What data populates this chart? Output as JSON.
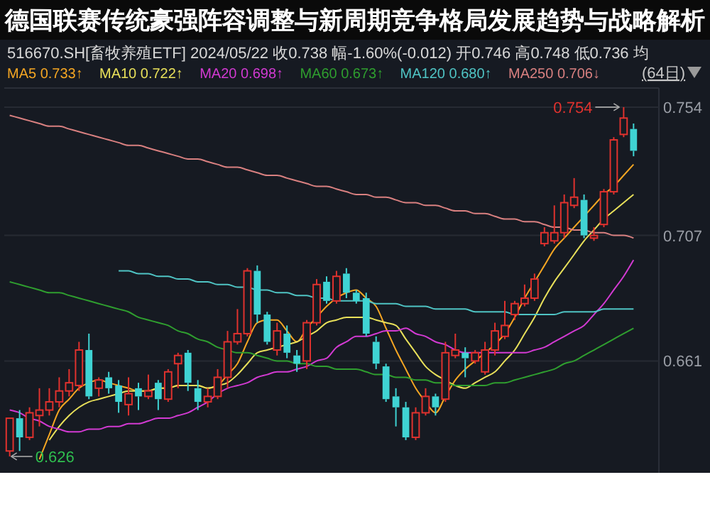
{
  "chart_data": {
    "type": "candlestick",
    "title": "德国联赛传统豪强阵容调整与新周期竞争格局发展趋势与战略解析",
    "subtitle": "516670.SH[畜牧养殖ETF]  2024/05/22  收0.738  幅-1.60%(-0.012)  开0.746  高0.748  低0.736  均",
    "categories": [
      null,
      null,
      null,
      null,
      null,
      null,
      null,
      null,
      null,
      null,
      null,
      null,
      null,
      null,
      null,
      null,
      null,
      null,
      null,
      null,
      null,
      null,
      null,
      null,
      null,
      null,
      null,
      null,
      null,
      null,
      null,
      null,
      null,
      null,
      null,
      null,
      null,
      null,
      null,
      null,
      null,
      null,
      null,
      null,
      null,
      null,
      null,
      null,
      null,
      null,
      null,
      null,
      null,
      null,
      null,
      null,
      null,
      null,
      null,
      null,
      null,
      null,
      null,
      null
    ],
    "ohlc": [
      [
        0.628,
        0.64,
        0.626,
        0.64
      ],
      [
        0.64,
        0.643,
        0.628,
        0.633
      ],
      [
        0.633,
        0.644,
        0.632,
        0.642
      ],
      [
        0.641,
        0.651,
        0.637,
        0.643
      ],
      [
        0.643,
        0.651,
        0.641,
        0.646
      ],
      [
        0.646,
        0.655,
        0.644,
        0.65
      ],
      [
        0.65,
        0.658,
        0.648,
        0.653
      ],
      [
        0.652,
        0.668,
        0.65,
        0.665
      ],
      [
        0.665,
        0.671,
        0.647,
        0.648
      ],
      [
        0.651,
        0.655,
        0.648,
        0.654
      ],
      [
        0.655,
        0.657,
        0.649,
        0.651
      ],
      [
        0.652,
        0.654,
        0.642,
        0.646
      ],
      [
        0.645,
        0.655,
        0.641,
        0.649
      ],
      [
        0.651,
        0.653,
        0.643,
        0.648
      ],
      [
        0.648,
        0.656,
        0.647,
        0.65
      ],
      [
        0.653,
        0.654,
        0.643,
        0.647
      ],
      [
        0.647,
        0.658,
        0.646,
        0.657
      ],
      [
        0.66,
        0.664,
        0.651,
        0.663
      ],
      [
        0.664,
        0.665,
        0.65,
        0.653
      ],
      [
        0.651,
        0.654,
        0.643,
        0.646
      ],
      [
        0.646,
        0.651,
        0.644,
        0.648
      ],
      [
        0.648,
        0.658,
        0.647,
        0.655
      ],
      [
        0.655,
        0.672,
        0.651,
        0.668
      ],
      [
        0.668,
        0.68,
        0.667,
        0.671
      ],
      [
        0.671,
        0.695,
        0.67,
        0.694
      ],
      [
        0.694,
        0.696,
        0.675,
        0.678
      ],
      [
        0.678,
        0.679,
        0.667,
        0.668
      ],
      [
        0.665,
        0.675,
        0.663,
        0.672
      ],
      [
        0.671,
        0.674,
        0.662,
        0.664
      ],
      [
        0.663,
        0.665,
        0.657,
        0.66
      ],
      [
        0.661,
        0.676,
        0.658,
        0.675
      ],
      [
        0.675,
        0.691,
        0.674,
        0.689
      ],
      [
        0.69,
        0.692,
        0.682,
        0.683
      ],
      [
        0.683,
        0.694,
        0.682,
        0.692
      ],
      [
        0.693,
        0.695,
        0.684,
        0.686
      ],
      [
        0.686,
        0.687,
        0.682,
        0.683
      ],
      [
        0.684,
        0.686,
        0.67,
        0.671
      ],
      [
        0.668,
        0.67,
        0.658,
        0.66
      ],
      [
        0.659,
        0.66,
        0.646,
        0.647
      ],
      [
        0.648,
        0.651,
        0.637,
        0.644
      ],
      [
        0.644,
        0.646,
        0.632,
        0.633
      ],
      [
        0.633,
        0.644,
        0.632,
        0.642
      ],
      [
        0.642,
        0.651,
        0.641,
        0.648
      ],
      [
        0.648,
        0.649,
        0.641,
        0.644
      ],
      [
        0.647,
        0.668,
        0.646,
        0.664
      ],
      [
        0.663,
        0.671,
        0.662,
        0.665
      ],
      [
        0.664,
        0.666,
        0.655,
        0.662
      ],
      [
        0.661,
        0.665,
        0.66,
        0.664
      ],
      [
        0.657,
        0.668,
        0.656,
        0.665
      ],
      [
        0.665,
        0.675,
        0.663,
        0.672
      ],
      [
        0.67,
        0.683,
        0.669,
        0.674
      ],
      [
        0.678,
        0.683,
        0.676,
        0.682
      ],
      [
        0.682,
        0.689,
        0.681,
        0.684
      ],
      [
        0.684,
        0.693,
        0.683,
        0.691
      ],
      [
        0.704,
        0.71,
        0.703,
        0.708
      ],
      [
        0.705,
        0.718,
        0.704,
        0.708
      ],
      [
        0.708,
        0.722,
        0.706,
        0.719
      ],
      [
        0.718,
        0.728,
        0.717,
        0.721
      ],
      [
        0.72,
        0.722,
        0.706,
        0.707
      ],
      [
        0.706,
        0.71,
        0.705,
        0.707
      ],
      [
        0.711,
        0.724,
        0.71,
        0.723
      ],
      [
        0.723,
        0.743,
        0.722,
        0.742
      ],
      [
        0.744,
        0.754,
        0.743,
        0.75
      ],
      [
        0.746,
        0.748,
        0.736,
        0.738
      ]
    ],
    "series": [
      {
        "type": "line",
        "name": "MA5 0.733↑",
        "color": "#f5a623",
        "values": [
          null,
          null,
          null,
          0.625,
          0.634,
          0.643,
          0.647,
          0.651,
          0.653,
          0.654,
          0.653,
          0.652,
          0.651,
          0.65,
          0.65,
          0.651,
          0.651,
          0.652,
          0.652,
          0.652,
          0.651,
          0.652,
          0.656,
          0.66,
          0.668,
          0.675,
          0.676,
          0.676,
          0.672,
          0.668,
          0.673,
          0.677,
          0.681,
          0.684,
          0.686,
          0.687,
          0.684,
          0.681,
          0.673,
          0.665,
          0.658,
          0.651,
          0.646,
          0.642,
          0.648,
          0.654,
          0.658,
          0.661,
          0.664,
          0.667,
          0.671,
          0.677,
          0.684,
          0.69,
          0.696,
          0.702,
          0.706,
          0.71,
          0.714,
          0.718,
          0.722,
          0.725,
          0.729,
          0.733
        ]
      },
      {
        "type": "line",
        "name": "MA10 0.722↑",
        "color": "#e8e05a",
        "values": [
          null,
          null,
          null,
          null,
          0.632,
          0.637,
          0.641,
          0.644,
          0.646,
          0.647,
          0.648,
          0.649,
          0.65,
          0.65,
          0.65,
          0.651,
          0.651,
          0.652,
          0.652,
          0.652,
          0.651,
          0.652,
          0.653,
          0.656,
          0.66,
          0.664,
          0.665,
          0.666,
          0.667,
          0.668,
          0.67,
          0.672,
          0.675,
          0.676,
          0.677,
          0.677,
          0.677,
          0.676,
          0.675,
          0.674,
          0.669,
          0.664,
          0.659,
          0.656,
          0.654,
          0.652,
          0.651,
          0.653,
          0.655,
          0.657,
          0.661,
          0.665,
          0.671,
          0.677,
          0.684,
          0.69,
          0.695,
          0.7,
          0.705,
          0.709,
          0.713,
          0.716,
          0.719,
          0.722
        ]
      },
      {
        "type": "line",
        "name": "MA20 0.698↑",
        "color": "#d23ad2",
        "values": [
          0.643,
          0.642,
          0.64,
          0.639,
          0.637,
          0.636,
          0.635,
          0.635,
          0.636,
          0.636,
          0.637,
          0.637,
          0.638,
          0.638,
          0.639,
          0.64,
          0.64,
          0.641,
          0.642,
          0.644,
          0.646,
          0.649,
          0.651,
          0.652,
          0.653,
          0.655,
          0.656,
          0.657,
          0.657,
          0.658,
          0.659,
          0.661,
          0.662,
          0.666,
          0.668,
          0.67,
          0.67,
          0.671,
          0.672,
          0.672,
          0.673,
          0.671,
          0.67,
          0.668,
          0.667,
          0.665,
          0.664,
          0.664,
          0.664,
          0.664,
          0.664,
          0.664,
          0.664,
          0.665,
          0.666,
          0.668,
          0.67,
          0.672,
          0.674,
          0.678,
          0.682,
          0.687,
          0.692,
          0.698
        ]
      },
      {
        "type": "line",
        "name": "MA60 0.673↑",
        "color": "#2f9e2f",
        "values": [
          0.69,
          0.689,
          0.688,
          0.687,
          0.686,
          0.686,
          0.685,
          0.684,
          0.683,
          0.682,
          0.681,
          0.68,
          0.679,
          0.677,
          0.676,
          0.675,
          0.674,
          0.672,
          0.671,
          0.669,
          0.668,
          0.666,
          0.665,
          0.664,
          0.664,
          0.663,
          0.662,
          0.661,
          0.661,
          0.66,
          0.66,
          0.659,
          0.659,
          0.658,
          0.658,
          0.658,
          0.657,
          0.656,
          0.656,
          0.655,
          0.655,
          0.654,
          0.654,
          0.653,
          0.653,
          0.652,
          0.652,
          0.652,
          0.652,
          0.653,
          0.653,
          0.654,
          0.655,
          0.656,
          0.657,
          0.658,
          0.66,
          0.661,
          0.663,
          0.665,
          0.667,
          0.669,
          0.671,
          0.673
        ]
      },
      {
        "type": "line",
        "name": "MA120 0.680↑",
        "color": "#4fc4c4",
        "values": [
          null,
          null,
          null,
          null,
          null,
          null,
          null,
          null,
          null,
          null,
          null,
          0.694,
          0.694,
          0.693,
          0.693,
          0.692,
          0.692,
          0.691,
          0.691,
          0.69,
          0.69,
          0.689,
          0.689,
          0.688,
          0.688,
          0.687,
          0.687,
          0.686,
          0.686,
          0.685,
          0.685,
          0.684,
          0.684,
          0.683,
          0.683,
          0.683,
          0.683,
          0.682,
          0.682,
          0.682,
          0.681,
          0.681,
          0.681,
          0.68,
          0.68,
          0.68,
          0.68,
          0.679,
          0.679,
          0.679,
          0.679,
          0.678,
          0.678,
          0.678,
          0.678,
          0.678,
          0.679,
          0.679,
          0.679,
          0.679,
          0.68,
          0.68,
          0.68,
          0.68
        ]
      },
      {
        "type": "line",
        "name": "MA250 0.706↓",
        "color": "#d98080",
        "values": [
          0.751,
          0.75,
          0.749,
          0.748,
          0.747,
          0.747,
          0.746,
          0.745,
          0.744,
          0.743,
          0.742,
          0.741,
          0.74,
          0.74,
          0.739,
          0.738,
          0.737,
          0.736,
          0.735,
          0.735,
          0.734,
          0.733,
          0.732,
          0.732,
          0.731,
          0.73,
          0.729,
          0.729,
          0.728,
          0.727,
          0.726,
          0.725,
          0.725,
          0.724,
          0.723,
          0.722,
          0.722,
          0.721,
          0.721,
          0.72,
          0.719,
          0.719,
          0.718,
          0.718,
          0.717,
          0.716,
          0.716,
          0.715,
          0.715,
          0.714,
          0.713,
          0.713,
          0.712,
          0.712,
          0.711,
          0.71,
          0.71,
          0.709,
          0.709,
          0.708,
          0.708,
          0.707,
          0.707,
          0.706
        ]
      }
    ],
    "ylim": [
      0.62,
      0.761
    ],
    "yticks": [
      0.754,
      0.707,
      0.661
    ],
    "grid": "y",
    "legend": "top",
    "tick_labels": "y",
    "annotations": [
      "0.754",
      "0.626",
      "(64日)"
    ]
  }
}
